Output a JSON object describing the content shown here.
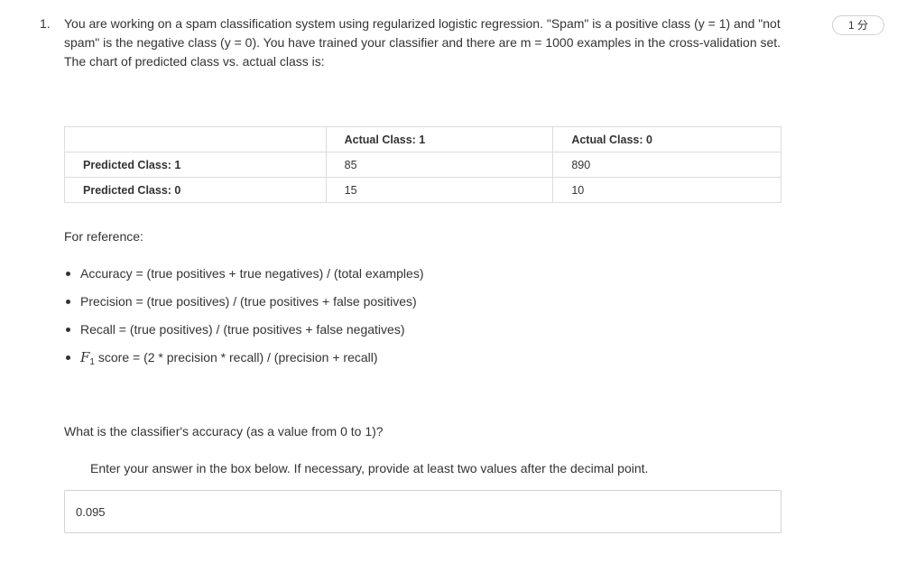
{
  "question": {
    "number": "1.",
    "points": "1 分",
    "text": "You are working on a spam classification system using regularized logistic regression. \"Spam\" is a positive class (y = 1) and \"not spam\" is the negative class (y = 0). You have trained your classifier and there are m = 1000 examples in the cross-validation set. The chart of predicted class vs. actual class is:"
  },
  "table": {
    "header": [
      "",
      "Actual Class: 1",
      "Actual Class: 0"
    ],
    "rows": [
      {
        "label": "Predicted Class: 1",
        "values": [
          "85",
          "890"
        ]
      },
      {
        "label": "Predicted Class: 0",
        "values": [
          "15",
          "10"
        ]
      }
    ]
  },
  "reference": {
    "label": "For reference:",
    "items": [
      "Accuracy = (true positives + true negatives) / (total examples)",
      "Precision = (true positives) / (true positives + false positives)",
      "Recall = (true positives) / (true positives + false negatives)"
    ],
    "f1": {
      "symbol": "F",
      "subscript": "1",
      "text": " score = (2 * precision * recall) / (precision + recall)"
    }
  },
  "prompt": "What is the classifier's accuracy (as a value from 0 to 1)?",
  "instruction": "Enter your answer in the box below. If necessary, provide at least two values after the decimal point.",
  "answer": {
    "value": "0.095"
  }
}
